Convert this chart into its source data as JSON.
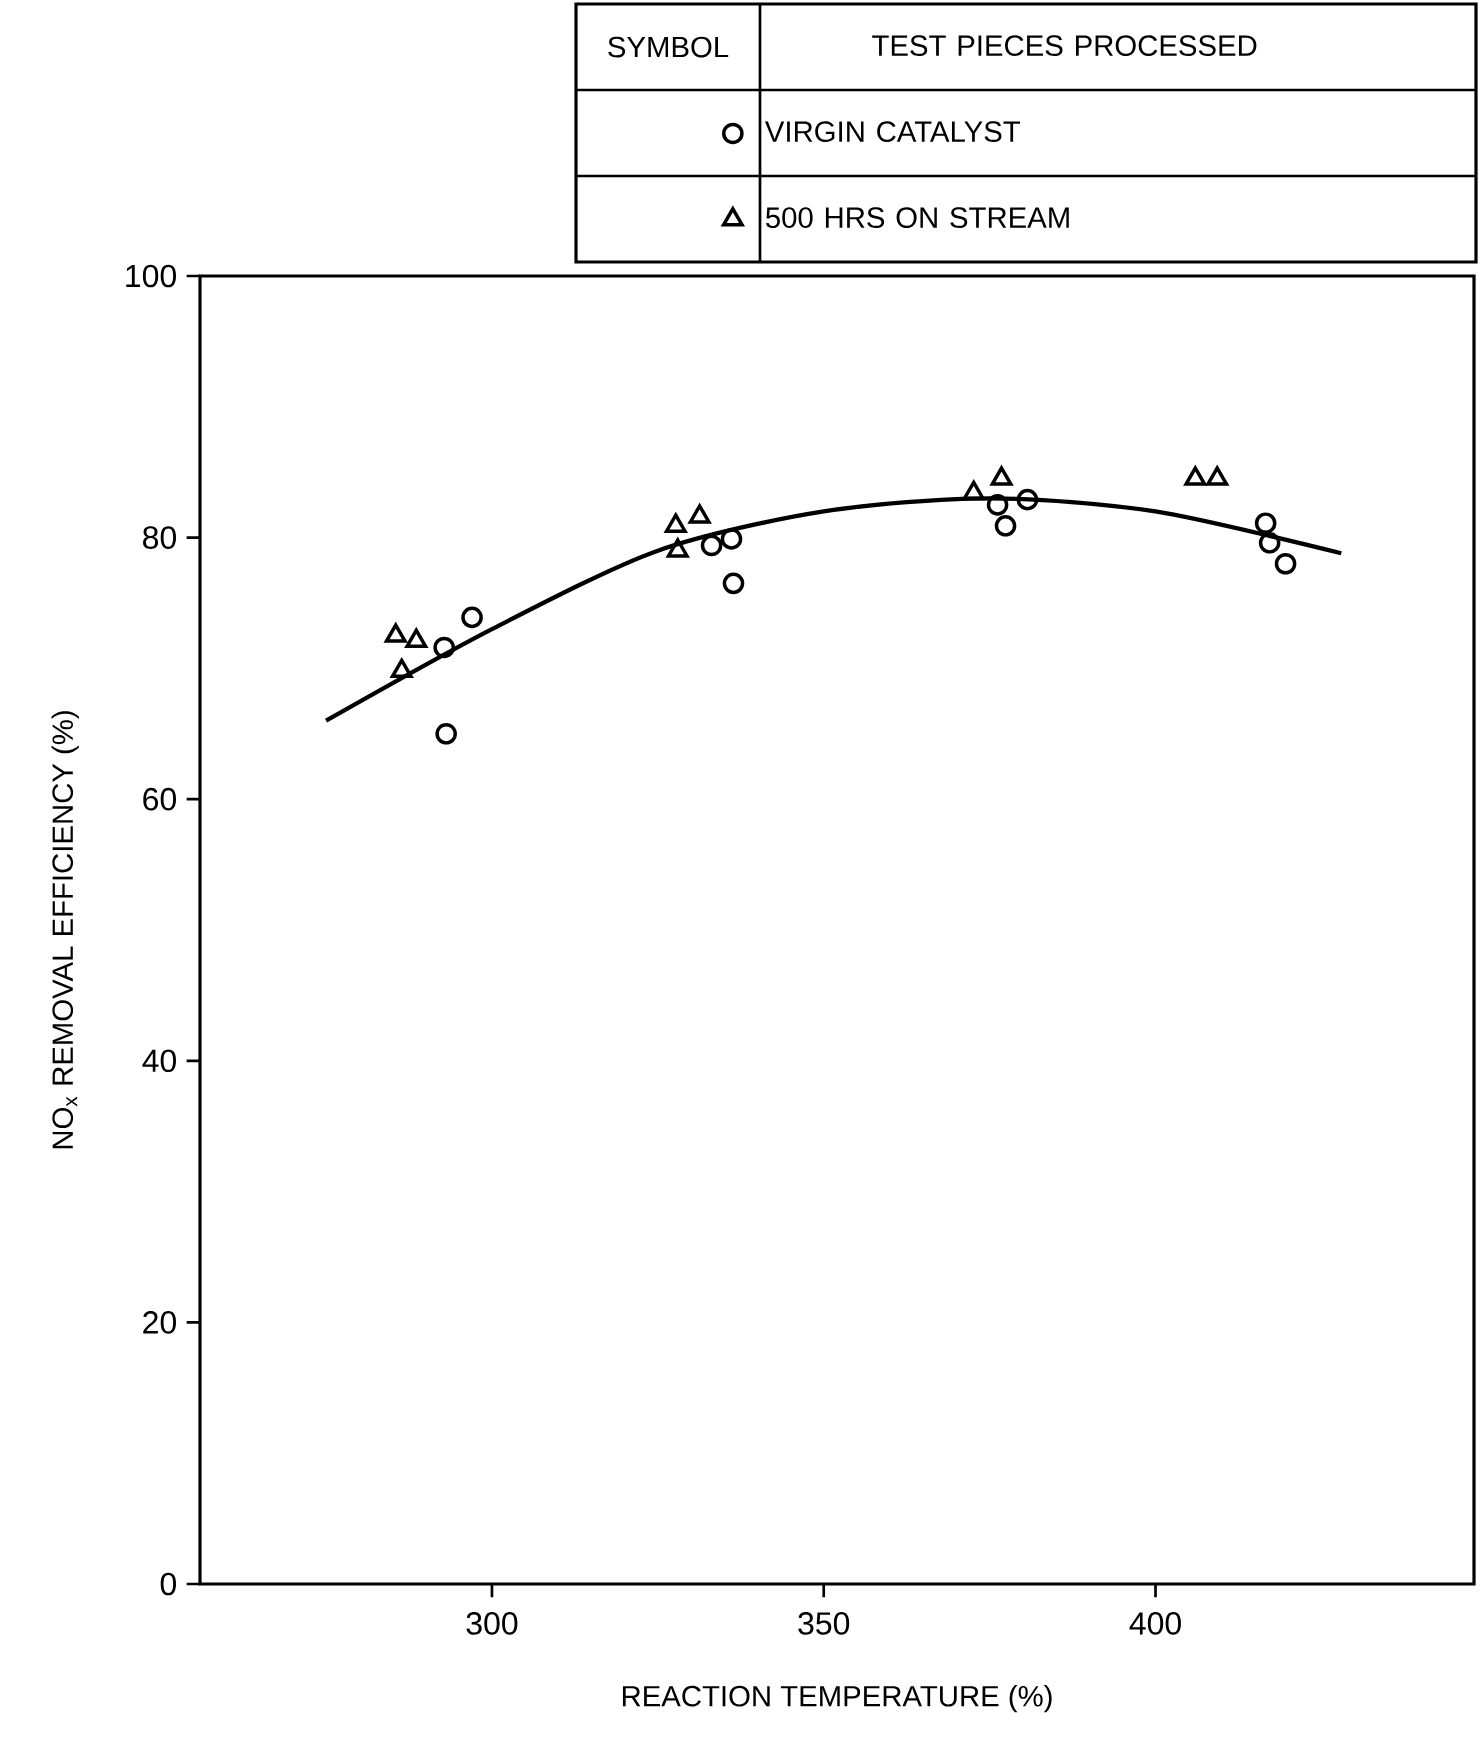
{
  "chart_data": {
    "type": "scatter",
    "xlabel": "REACTION TEMPERATURE (%)",
    "ylabel": "NO$_{x}$ REMOVAL EFFICIENCY (%)",
    "legend_title": "TEST PIECES PROCESSED",
    "annotations": [
      "SYMBOL"
    ],
    "xlim": [
      256,
      448
    ],
    "ylim": [
      0,
      100
    ],
    "xticks": [
      300,
      350,
      400
    ],
    "yticks": [
      0,
      20,
      40,
      60,
      80,
      100
    ],
    "grid": false,
    "legend": "top right",
    "series": [
      {
        "name": "VIRGIN CATALYST",
        "marker": "circle",
        "color": "#000000",
        "x": [
          292.8,
          297.0,
          293.1,
          333.1,
          336.1,
          336.4,
          376.2,
          377.4,
          380.7,
          416.6,
          417.2,
          419.6
        ],
        "values": [
          71.6,
          73.9,
          65.0,
          79.4,
          79.9,
          76.5,
          82.5,
          80.9,
          82.9,
          81.1,
          79.6,
          78.0
        ]
      },
      {
        "name": "500 HRS ON STREAM",
        "marker": "triangle",
        "color": "#000000",
        "x": [
          285.5,
          288.6,
          286.4,
          327.7,
          331.3,
          328.0,
          372.6,
          376.8,
          406.0,
          409.3
        ],
        "values": [
          72.5,
          72.1,
          69.8,
          80.9,
          81.6,
          79.0,
          83.4,
          84.5,
          84.5,
          84.5
        ]
      },
      {
        "type": "line",
        "marker": "none",
        "color": "#000000",
        "x": [
          275,
          300,
          325,
          350,
          375,
          400,
          428
        ],
        "values": [
          66.0,
          73.0,
          79.0,
          82.0,
          83.0,
          82.0,
          78.8
        ]
      }
    ]
  }
}
